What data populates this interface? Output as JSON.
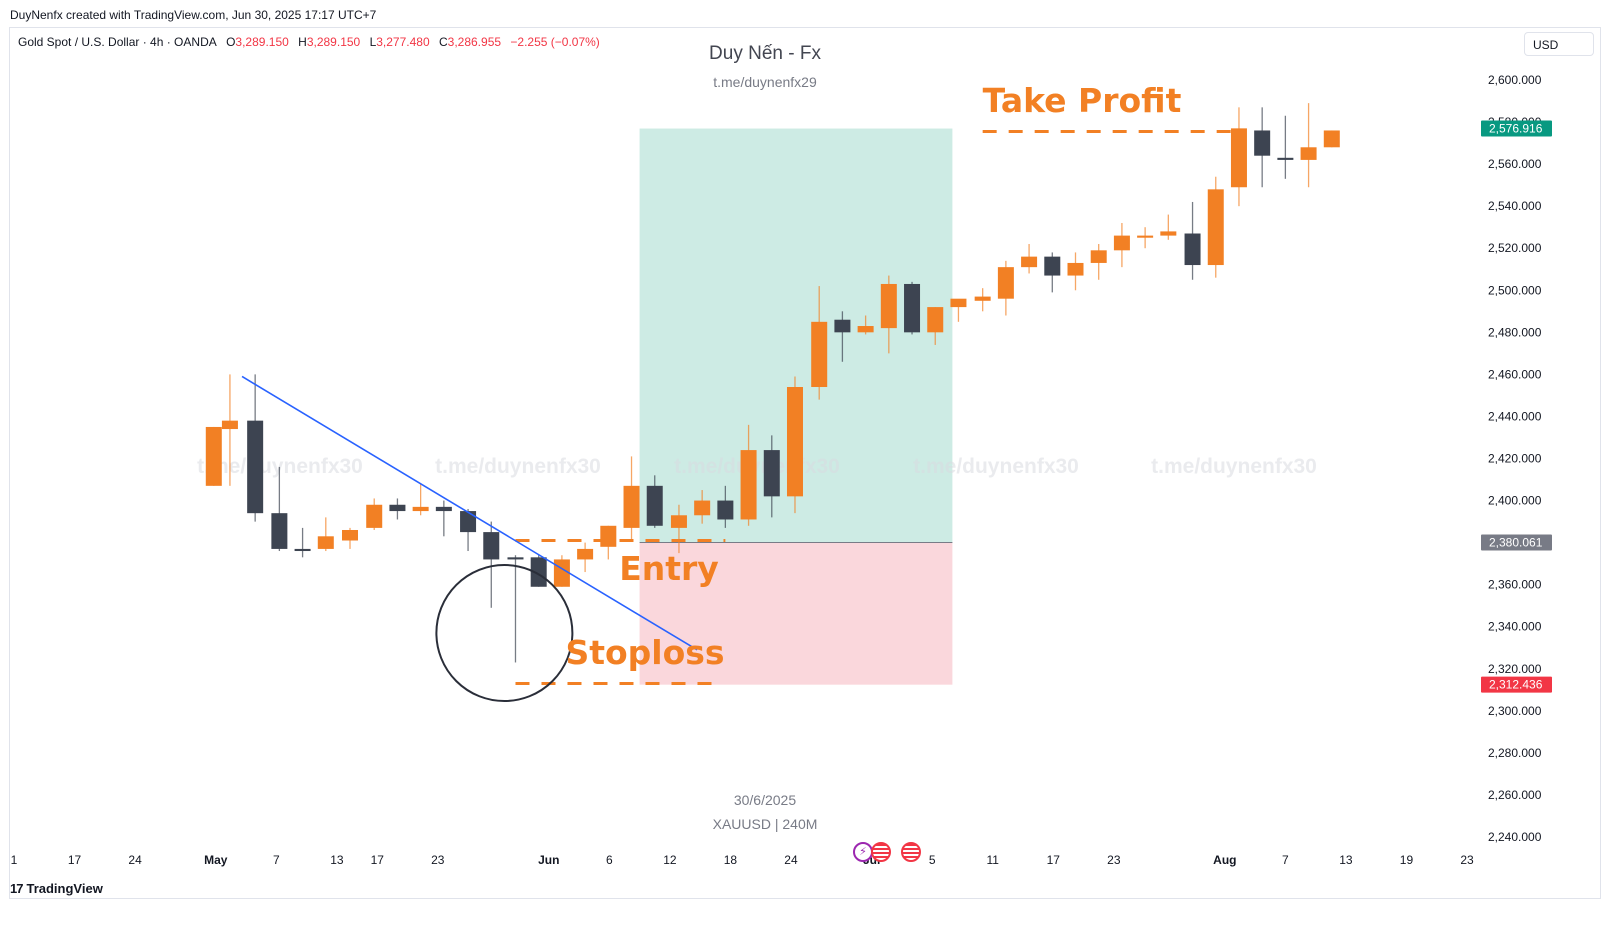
{
  "header": {
    "created_by": "DuyNenfx created with TradingView.com, Jun 30, 2025 17:17 UTC+7"
  },
  "legend": {
    "symbol": "Gold Spot / U.S. Dollar · 4h · OANDA",
    "o_label": "O",
    "o_value": "3,289.150",
    "h_label": "H",
    "h_value": "3,289.150",
    "l_label": "L",
    "l_value": "3,277.480",
    "c_label": "C",
    "c_value": "3,286.955",
    "change": "−2.255 (−0.07%)"
  },
  "currency_button": "USD",
  "watermark": {
    "title": "Duy Nến - Fx",
    "subtitle": "t.me/duynenfx29",
    "date": "30/6/2025",
    "symbol": "XAUUSD | 240M",
    "repeat_text": "t.me/duynenfx30"
  },
  "footer": {
    "logo": "17",
    "brand": "TradingView"
  },
  "colors": {
    "bull": "#f28024",
    "bear": "#3d4451",
    "profit_zone": "#cdebe4",
    "loss_zone": "#fad7dc",
    "trendline": "#2962ff",
    "annotation": "#f28024",
    "tp_tag": "#089981",
    "sl_tag": "#f23645",
    "entry_tag": "#787b86"
  },
  "chart_data": {
    "type": "candlestick",
    "symbol": "XAUUSD",
    "ylim": [
      2230,
      2610
    ],
    "y_ticks": [
      2240,
      2260,
      2280,
      2300,
      2320,
      2340,
      2360,
      2380,
      2400,
      2420,
      2440,
      2460,
      2480,
      2500,
      2520,
      2540,
      2560,
      2580,
      2600
    ],
    "y_tick_labels": [
      "2,240.000",
      "2,260.000",
      "2,280.000",
      "2,300.000",
      "2,320.000",
      "2,340.000",
      "2,360.000",
      "2,380.000",
      "2,400.000",
      "2,420.000",
      "2,440.000",
      "2,460.000",
      "2,480.000",
      "2,500.000",
      "2,520.000",
      "2,540.000",
      "2,560.000",
      "2,580.000",
      "2,600.000"
    ],
    "x_days": [
      0,
      16,
      23,
      30,
      36,
      42,
      48,
      54,
      61,
      67,
      73,
      79,
      85,
      91,
      97,
      104,
      110,
      116,
      122,
      128,
      138,
      144,
      150,
      156
    ],
    "x_tick_labels": [
      "1",
      "17",
      "24",
      "May",
      "7",
      "13",
      "17",
      "23",
      "Jun",
      "6",
      "12",
      "18",
      "24",
      "Jul",
      "5",
      "11",
      "17",
      "23",
      "Aug",
      "7",
      "13",
      "19",
      "23"
    ],
    "x_tick_days": [
      0,
      6,
      12,
      20,
      26,
      32,
      36,
      42,
      53,
      59,
      65,
      71,
      77,
      85,
      91,
      97,
      103,
      109,
      120,
      126,
      132,
      138,
      144
    ],
    "x_bold_ticks": [
      "May",
      "Jun",
      "Jul",
      "Aug"
    ],
    "candles": [
      {
        "d": 19.8,
        "o": 2407,
        "h": 2435,
        "l": 2407,
        "c": 2435
      },
      {
        "d": 21.4,
        "o": 2434,
        "h": 2460,
        "l": 2407,
        "c": 2438
      },
      {
        "d": 23.9,
        "o": 2438,
        "h": 2460,
        "l": 2390,
        "c": 2394
      },
      {
        "d": 26.3,
        "o": 2394,
        "h": 2416,
        "l": 2376,
        "c": 2377
      },
      {
        "d": 28.6,
        "o": 2377,
        "h": 2387,
        "l": 2373,
        "c": 2376
      },
      {
        "d": 30.9,
        "o": 2377,
        "h": 2392,
        "l": 2376,
        "c": 2383
      },
      {
        "d": 33.3,
        "o": 2381,
        "h": 2387,
        "l": 2377,
        "c": 2386
      },
      {
        "d": 35.7,
        "o": 2387,
        "h": 2401,
        "l": 2386,
        "c": 2398
      },
      {
        "d": 38.0,
        "o": 2398,
        "h": 2401,
        "l": 2391,
        "c": 2395
      },
      {
        "d": 40.3,
        "o": 2395,
        "h": 2408,
        "l": 2393,
        "c": 2397
      },
      {
        "d": 42.6,
        "o": 2397,
        "h": 2400,
        "l": 2383,
        "c": 2395
      },
      {
        "d": 45.0,
        "o": 2395,
        "h": 2396,
        "l": 2376,
        "c": 2385
      },
      {
        "d": 47.3,
        "o": 2385,
        "h": 2390,
        "l": 2349,
        "c": 2372
      },
      {
        "d": 49.7,
        "o": 2373,
        "h": 2374,
        "l": 2323,
        "c": 2372
      },
      {
        "d": 52.0,
        "o": 2373,
        "h": 2374,
        "l": 2359,
        "c": 2359
      },
      {
        "d": 54.3,
        "o": 2359,
        "h": 2374,
        "l": 2359,
        "c": 2372
      },
      {
        "d": 56.6,
        "o": 2372,
        "h": 2380,
        "l": 2366,
        "c": 2377
      },
      {
        "d": 58.9,
        "o": 2378,
        "h": 2388,
        "l": 2372,
        "c": 2388
      },
      {
        "d": 61.2,
        "o": 2387,
        "h": 2421,
        "l": 2381,
        "c": 2407
      },
      {
        "d": 63.5,
        "o": 2407,
        "h": 2412,
        "l": 2387,
        "c": 2388
      },
      {
        "d": 65.9,
        "o": 2387,
        "h": 2398,
        "l": 2375,
        "c": 2393
      },
      {
        "d": 68.2,
        "o": 2393,
        "h": 2405,
        "l": 2389,
        "c": 2400
      },
      {
        "d": 70.5,
        "o": 2400,
        "h": 2407,
        "l": 2387,
        "c": 2391
      },
      {
        "d": 72.8,
        "o": 2391,
        "h": 2436,
        "l": 2388,
        "c": 2424
      },
      {
        "d": 75.1,
        "o": 2424,
        "h": 2431,
        "l": 2392,
        "c": 2402
      },
      {
        "d": 77.4,
        "o": 2402,
        "h": 2459,
        "l": 2394,
        "c": 2454
      },
      {
        "d": 79.8,
        "o": 2454,
        "h": 2502,
        "l": 2448,
        "c": 2485
      },
      {
        "d": 82.1,
        "o": 2486,
        "h": 2490,
        "l": 2466,
        "c": 2480
      },
      {
        "d": 84.4,
        "o": 2480,
        "h": 2488,
        "l": 2479,
        "c": 2483
      },
      {
        "d": 86.7,
        "o": 2482,
        "h": 2507,
        "l": 2470,
        "c": 2503
      },
      {
        "d": 89.0,
        "o": 2503,
        "h": 2504,
        "l": 2479,
        "c": 2480
      },
      {
        "d": 91.3,
        "o": 2480,
        "h": 2492,
        "l": 2474,
        "c": 2492
      },
      {
        "d": 93.6,
        "o": 2492,
        "h": 2495,
        "l": 2485,
        "c": 2496
      },
      {
        "d": 96.0,
        "o": 2495,
        "h": 2501,
        "l": 2490,
        "c": 2497
      },
      {
        "d": 98.3,
        "o": 2496,
        "h": 2514,
        "l": 2488,
        "c": 2511
      },
      {
        "d": 100.6,
        "o": 2511,
        "h": 2522,
        "l": 2508,
        "c": 2516
      },
      {
        "d": 102.9,
        "o": 2516,
        "h": 2518,
        "l": 2499,
        "c": 2507
      },
      {
        "d": 105.2,
        "o": 2507,
        "h": 2518,
        "l": 2500,
        "c": 2513
      },
      {
        "d": 107.5,
        "o": 2513,
        "h": 2522,
        "l": 2505,
        "c": 2519
      },
      {
        "d": 109.8,
        "o": 2519,
        "h": 2532,
        "l": 2511,
        "c": 2526
      },
      {
        "d": 112.1,
        "o": 2525,
        "h": 2530,
        "l": 2520,
        "c": 2526
      },
      {
        "d": 114.4,
        "o": 2526,
        "h": 2536,
        "l": 2524,
        "c": 2528
      },
      {
        "d": 116.8,
        "o": 2527,
        "h": 2542,
        "l": 2505,
        "c": 2512
      },
      {
        "d": 119.1,
        "o": 2512,
        "h": 2554,
        "l": 2506,
        "c": 2548
      },
      {
        "d": 121.4,
        "o": 2549,
        "h": 2587,
        "l": 2540,
        "c": 2577
      },
      {
        "d": 123.7,
        "o": 2576,
        "h": 2587,
        "l": 2549,
        "c": 2564
      },
      {
        "d": 126.0,
        "o": 2563,
        "h": 2583,
        "l": 2553,
        "c": 2562
      },
      {
        "d": 128.3,
        "o": 2562,
        "h": 2589,
        "l": 2549,
        "c": 2568
      },
      {
        "d": 130.6,
        "o": 2568,
        "h": 2576,
        "l": 2568,
        "c": 2576
      }
    ],
    "position": {
      "take_profit": 2576.916,
      "entry": 2380.061,
      "stop_loss": 2312.436,
      "tp_label": "2,576.916",
      "entry_label": "2,380.061",
      "sl_label": "2,312.436",
      "start_day": 62.0,
      "end_day": 93.0
    },
    "trendline": {
      "from": {
        "d": 22.6,
        "p": 2459
      },
      "to": {
        "d": 67.7,
        "p": 2329
      }
    },
    "annotations": {
      "take_profit": "Take Profit",
      "entry": "Entry",
      "stoploss": "Stoploss"
    },
    "tp_dash": {
      "from_day": 96.0,
      "to_day": 122.0,
      "price": 2575.5
    },
    "sl_dash": {
      "from_day": 49.7,
      "to_day": 69.5,
      "price": 2313
    },
    "entry_dash": {
      "from_day": 49.7,
      "to_day": 70.5,
      "price": 2381
    },
    "circle": {
      "d": 48.6,
      "p": 2337
    }
  }
}
